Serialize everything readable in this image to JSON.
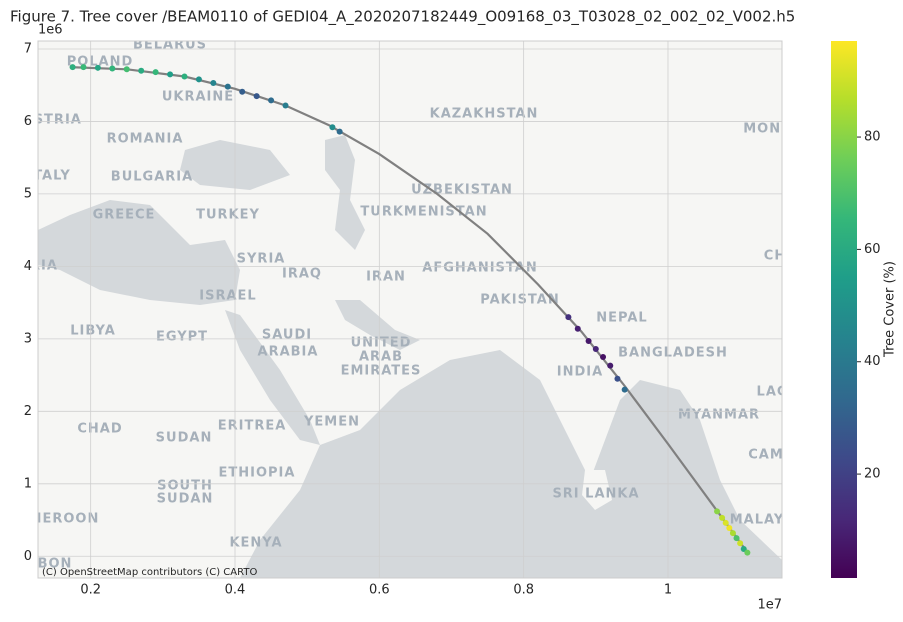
{
  "chart_data": {
    "type": "scatter",
    "title": "Figure 7. Tree cover /BEAM0110 of GEDI04_A_2020207182449_O09168_03_T03028_02_002_02_V002.h5",
    "xlim": [
      0.127,
      1.158
    ],
    "ylim": [
      -0.3,
      7.11
    ],
    "xticks": [
      0.2,
      0.4,
      0.6,
      0.8,
      1.0
    ],
    "yticks": [
      0,
      1,
      2,
      3,
      4,
      5,
      6,
      7
    ],
    "x_offset_label": "1e7",
    "y_offset_label": "1e6",
    "grid": true,
    "track_color": "#808080",
    "track_x": [
      0.171,
      0.25,
      0.33,
      0.4,
      0.47,
      0.53,
      0.6,
      0.68,
      0.75,
      0.82,
      0.88,
      0.94,
      1.0,
      1.07,
      1.111
    ],
    "track_y": [
      6.75,
      6.72,
      6.62,
      6.45,
      6.22,
      5.95,
      5.55,
      5.0,
      4.45,
      3.75,
      3.1,
      2.35,
      1.55,
      0.6,
      0.04
    ],
    "x": [
      0.175,
      0.19,
      0.21,
      0.23,
      0.25,
      0.27,
      0.29,
      0.31,
      0.33,
      0.35,
      0.37,
      0.39,
      0.41,
      0.43,
      0.45,
      0.47,
      0.535,
      0.545,
      0.862,
      0.875,
      0.89,
      0.9,
      0.91,
      0.92,
      0.93,
      0.94,
      1.068,
      1.075,
      1.08,
      1.085,
      1.09,
      1.095,
      1.1,
      1.105,
      1.11
    ],
    "y": [
      6.75,
      6.75,
      6.74,
      6.73,
      6.72,
      6.7,
      6.68,
      6.65,
      6.62,
      6.58,
      6.53,
      6.48,
      6.41,
      6.35,
      6.29,
      6.22,
      5.92,
      5.86,
      3.3,
      3.14,
      2.97,
      2.86,
      2.75,
      2.63,
      2.45,
      2.3,
      0.62,
      0.53,
      0.46,
      0.39,
      0.32,
      0.25,
      0.18,
      0.1,
      0.05
    ],
    "values": [
      62,
      66,
      58,
      64,
      68,
      60,
      65,
      55,
      62,
      50,
      45,
      38,
      30,
      28,
      35,
      42,
      48,
      35,
      15,
      10,
      8,
      12,
      6,
      9,
      25,
      35,
      80,
      88,
      92,
      95,
      85,
      70,
      90,
      60,
      75
    ],
    "colormap": "viridis",
    "colorbar": {
      "label": "Tree Cover (%)",
      "lim": [
        1.5,
        97.1
      ],
      "ticks": [
        20,
        40,
        60,
        80
      ]
    },
    "attribution": "(C) OpenStreetMap contributors (C) CARTO",
    "map_labels": [
      "BELARUS",
      "POLAND",
      "UKRAINE",
      "USTRIA",
      "ROMANIA",
      "KAZAKHSTAN",
      "MONG",
      "TALY",
      "BULGARIA",
      "UZBEKISTAN",
      "GREECE",
      "TURKEY",
      "TURKMENISTAN",
      "SYRIA",
      "CH",
      "IRAQ",
      "IRAN",
      "AFGHANISTAN",
      "RIA",
      "ISRAEL",
      "PAKISTAN",
      "LIBYA",
      "EGYPT",
      "SAUDI",
      "ARABIA",
      "UNITED",
      "ARAB",
      "EMIRATES",
      "NEPAL",
      "BANGLADESH",
      "INDIA",
      "LAC",
      "CHAD",
      "SUDAN",
      "ERITREA",
      "YEMEN",
      "MYANMAR",
      "CAM",
      "ETHIOPIA",
      "SOUTH",
      "SUDAN",
      "SRI LANKA",
      "MALAY",
      "IEROON",
      "KENYA",
      "BON"
    ]
  }
}
